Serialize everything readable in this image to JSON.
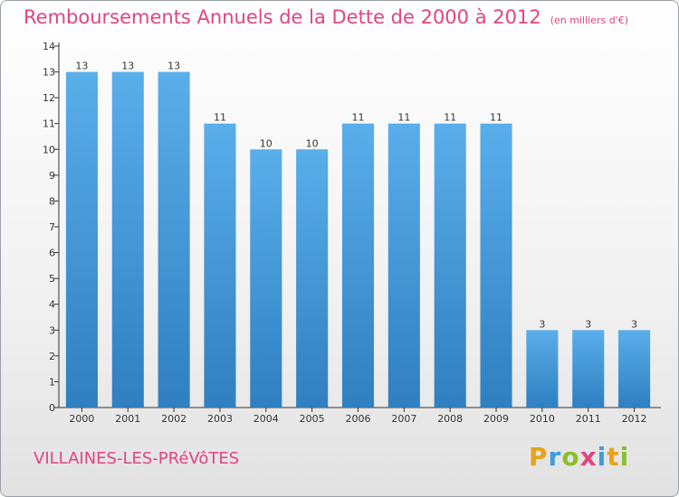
{
  "chart_data": {
    "type": "bar",
    "title": "Remboursements Annuels de la Dette de 2000 à 2012",
    "unit": "(en milliers d'€)",
    "categories": [
      "2000",
      "2001",
      "2002",
      "2003",
      "2004",
      "2005",
      "2006",
      "2007",
      "2008",
      "2009",
      "2010",
      "2011",
      "2012"
    ],
    "values": [
      13,
      13,
      13,
      11,
      10,
      10,
      11,
      11,
      11,
      11,
      3,
      3,
      3
    ],
    "yticks": [
      0,
      1,
      2,
      3,
      4,
      5,
      6,
      7,
      8,
      9,
      10,
      11,
      12,
      13,
      14
    ],
    "ylim": [
      0,
      14
    ],
    "xlabel": "",
    "ylabel": "",
    "grid": false
  },
  "commune": "VILLAINES-LES-PRéVôTES",
  "logo": {
    "letters": [
      "P",
      "r",
      "o",
      "x",
      "i",
      "t",
      "i"
    ]
  },
  "colors": {
    "title": "#e0457f",
    "bar_top": "#5aaeea",
    "bar_bottom": "#2f7fc1",
    "logo": [
      "#e8a318",
      "#3e9ddb",
      "#8cbf2a",
      "#e0457f",
      "#3e9ddb",
      "#e8a318",
      "#8cbf2a"
    ]
  }
}
